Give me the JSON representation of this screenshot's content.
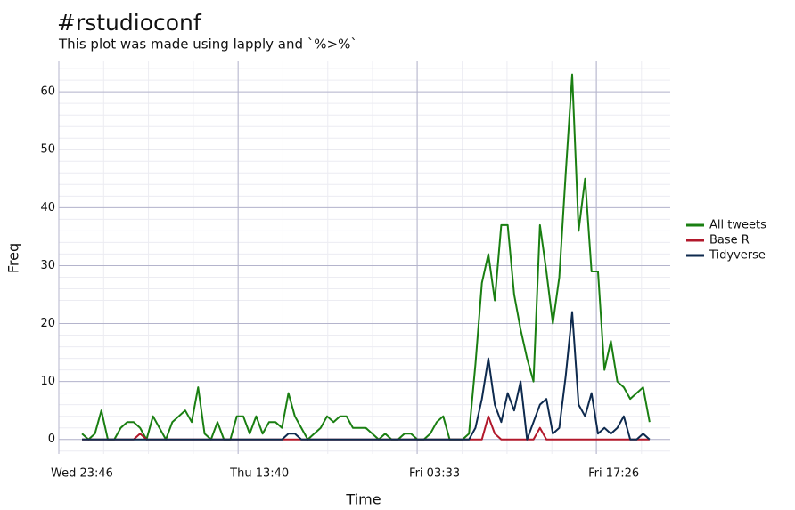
{
  "chart_data": {
    "type": "line",
    "title": "#rstudioconf",
    "subtitle": "This plot was made using lapply and `%>%`",
    "xlabel": "Time",
    "ylabel": "Freq",
    "x": [
      1.8,
      2.3,
      2.8,
      3.3,
      3.8,
      4.3,
      4.8,
      5.3,
      5.8,
      6.3,
      6.8,
      7.3,
      7.8,
      8.3,
      8.8,
      9.3,
      9.8,
      10.3,
      10.8,
      11.3,
      11.8,
      12.3,
      12.8,
      13.3,
      13.8,
      14.3,
      14.8,
      15.3,
      15.8,
      16.3,
      16.8,
      17.3,
      17.8,
      18.3,
      18.8,
      19.3,
      19.8,
      20.3,
      20.8,
      21.3,
      21.8,
      22.3,
      22.8,
      23.3,
      23.8,
      24.3,
      24.8,
      25.3,
      25.8,
      26.3,
      26.8,
      27.3,
      27.8,
      28.3,
      28.8,
      29.3,
      29.8,
      30.3,
      30.8,
      31.3,
      31.8,
      32.3,
      32.8,
      33.3,
      33.8,
      34.3,
      34.8,
      35.3,
      35.8,
      36.3,
      36.8,
      37.3,
      37.8,
      38.3,
      38.8,
      39.3,
      39.8,
      40.3,
      40.8,
      41.3,
      41.8,
      42.3,
      42.8,
      43.3,
      43.8,
      44.3,
      44.8,
      45.3,
      45.8
    ],
    "series": [
      {
        "name": "All tweets",
        "color": "#1a7f12",
        "values": [
          1,
          0,
          1,
          5,
          0,
          0,
          2,
          3,
          3,
          2,
          0,
          4,
          2,
          0,
          3,
          4,
          5,
          3,
          9,
          1,
          0,
          3,
          0,
          0,
          4,
          4,
          1,
          4,
          1,
          3,
          3,
          2,
          8,
          4,
          2,
          0,
          1,
          2,
          4,
          3,
          4,
          4,
          2,
          2,
          2,
          1,
          0,
          1,
          0,
          0,
          1,
          1,
          0,
          0,
          1,
          3,
          4,
          0,
          0,
          0,
          1,
          13,
          27,
          32,
          24,
          37,
          37,
          25,
          19,
          14,
          10,
          37,
          29,
          20,
          28,
          46,
          63,
          36,
          45,
          29,
          29,
          12,
          17,
          10,
          9,
          7,
          8,
          9,
          3
        ]
      },
      {
        "name": "Base R",
        "color": "#b2182b",
        "values": [
          0,
          0,
          0,
          0,
          0,
          0,
          0,
          0,
          0,
          1,
          0,
          0,
          0,
          0,
          0,
          0,
          0,
          0,
          0,
          0,
          0,
          0,
          0,
          0,
          0,
          0,
          0,
          0,
          0,
          0,
          0,
          0,
          0,
          0,
          0,
          0,
          0,
          0,
          0,
          0,
          0,
          0,
          0,
          0,
          0,
          0,
          0,
          0,
          0,
          0,
          0,
          0,
          0,
          0,
          0,
          0,
          0,
          0,
          0,
          0,
          0,
          0,
          0,
          4,
          1,
          0,
          0,
          0,
          0,
          0,
          0,
          2,
          0,
          0,
          0,
          0,
          0,
          0,
          0,
          0,
          0,
          0,
          0,
          0,
          0,
          0,
          0,
          0,
          0
        ]
      },
      {
        "name": "Tidyverse",
        "color": "#0e2a4e",
        "values": [
          0,
          0,
          0,
          0,
          0,
          0,
          0,
          0,
          0,
          0,
          0,
          0,
          0,
          0,
          0,
          0,
          0,
          0,
          0,
          0,
          0,
          0,
          0,
          0,
          0,
          0,
          0,
          0,
          0,
          0,
          0,
          0,
          1,
          1,
          0,
          0,
          0,
          0,
          0,
          0,
          0,
          0,
          0,
          0,
          0,
          0,
          0,
          0,
          0,
          0,
          0,
          0,
          0,
          0,
          0,
          0,
          0,
          0,
          0,
          0,
          0,
          2,
          7,
          14,
          6,
          3,
          8,
          5,
          10,
          0,
          3,
          6,
          7,
          1,
          2,
          11,
          22,
          6,
          4,
          8,
          1,
          2,
          1,
          2,
          4,
          0,
          0,
          1,
          0
        ]
      }
    ],
    "xlim": [
      0,
      47.4
    ],
    "xticks": [
      {
        "value": 0,
        "label": "Wed 23:46"
      },
      {
        "value": 13.9,
        "label": "Thu 13:40"
      },
      {
        "value": 27.78,
        "label": "Fri 03:33"
      },
      {
        "value": 41.67,
        "label": "Fri 17:26"
      }
    ],
    "ylim": [
      -2.5,
      65.4
    ],
    "yticks": [
      0,
      10,
      20,
      30,
      40,
      50,
      60
    ],
    "grid": true,
    "legend": "right"
  }
}
